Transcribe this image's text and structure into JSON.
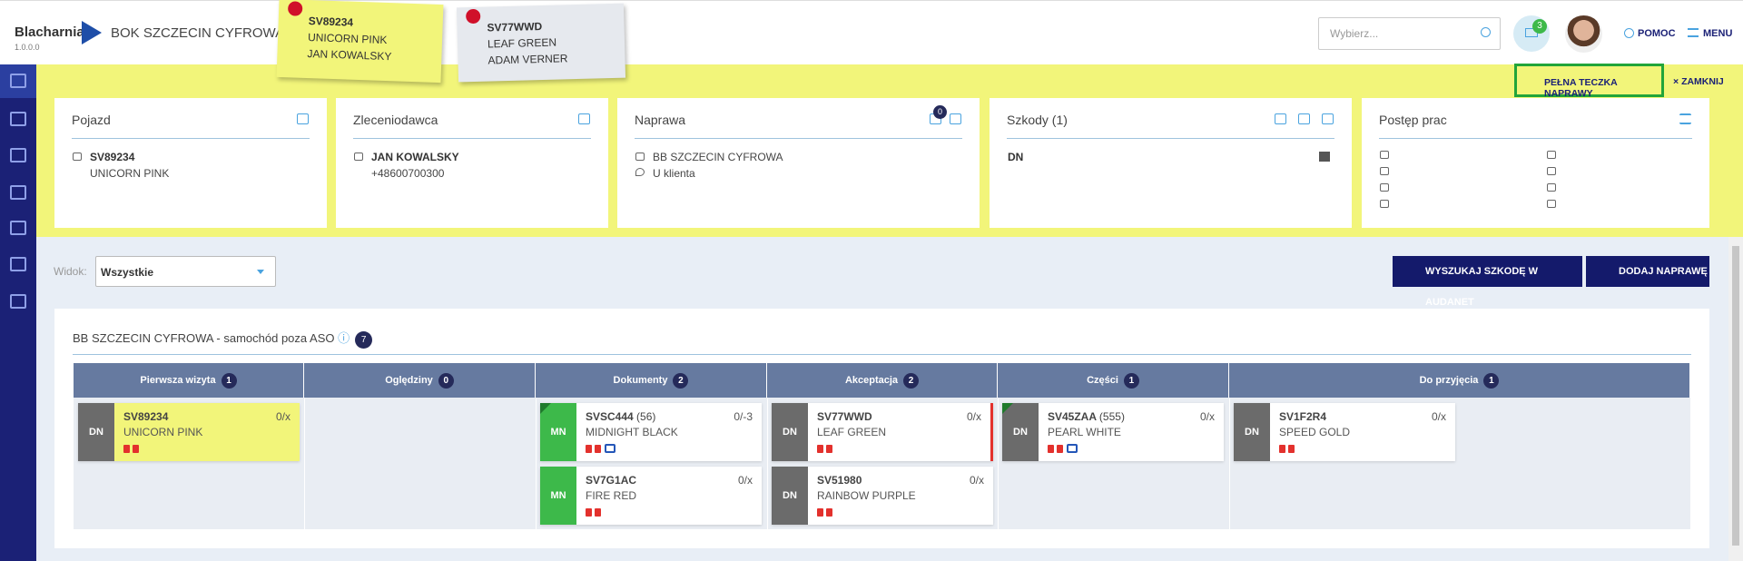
{
  "header": {
    "logo": "Blacharnia",
    "version": "1.0.0.0",
    "location": "BOK SZCZECIN CYFROWA",
    "search_placeholder": "Wybierz...",
    "messages": 3,
    "help": "POMOC",
    "menu": "MENU"
  },
  "sticky_notes": [
    {
      "plate": "SV89234",
      "lines": [
        "UNICORN PINK",
        "JAN KOWALSKY"
      ]
    },
    {
      "plate": "SV77WWD",
      "lines": [
        "LEAF GREEN",
        "ADAM VERNER"
      ]
    }
  ],
  "actions": {
    "full_folder": "PEŁNA TECZKA NAPRAWY",
    "close": "ZAMKNIJ"
  },
  "cards": {
    "vehicle": {
      "title": "Pojazd",
      "plate": "SV89234",
      "name": "UNICORN PINK"
    },
    "client": {
      "title": "Zleceniodawca",
      "name": "JAN KOWALSKY",
      "phone": "+48600700300"
    },
    "repair": {
      "title": "Naprawa",
      "messages": 0,
      "location": "BB SZCZECIN CYFROWA",
      "place": "U klienta"
    },
    "damages": {
      "title": "Szkody (1)",
      "code": "DN"
    },
    "progress": {
      "title": "Postęp prac"
    }
  },
  "toolbar": {
    "view_label": "Widok:",
    "view_value": "Wszystkie",
    "search_button": "WYSZUKAJ SZKODĘ W AUDANET",
    "add_button": "DODAJ NAPRAWĘ"
  },
  "board": {
    "title": "BB SZCZECIN CYFROWA - samochód poza ASO",
    "count": 7,
    "columns": [
      {
        "name": "Pierwsza wizyta",
        "count": 1,
        "cards": [
          {
            "type": "DN",
            "plate": "SV89234",
            "name": "UNICORN PINK",
            "score": "0/x"
          }
        ]
      },
      {
        "name": "Oględziny",
        "count": 0,
        "cards": []
      },
      {
        "name": "Dokumenty",
        "count": 2,
        "cards": [
          {
            "type": "MN",
            "plate": "SVSC444",
            "extra": "(56)",
            "name": "MIDNIGHT BLACK",
            "score": "0/-3"
          },
          {
            "type": "MN",
            "plate": "SV7G1AC",
            "name": "FIRE RED",
            "score": "0/x"
          }
        ]
      },
      {
        "name": "Akceptacja",
        "count": 2,
        "cards": [
          {
            "type": "DN",
            "plate": "SV77WWD",
            "name": "LEAF GREEN",
            "score": "0/x"
          },
          {
            "type": "DN",
            "plate": "SV51980",
            "name": "RAINBOW PURPLE",
            "score": "0/x"
          }
        ]
      },
      {
        "name": "Części",
        "count": 1,
        "cards": [
          {
            "type": "DN",
            "plate": "SV45ZAA",
            "extra": "(555)",
            "name": "PEARL WHITE",
            "score": "0/x"
          }
        ]
      },
      {
        "name": "Do przyjęcia",
        "count": 1,
        "cards": [
          {
            "type": "DN",
            "plate": "SV1F2R4",
            "name": "SPEED GOLD",
            "score": "0/x"
          }
        ]
      }
    ]
  }
}
